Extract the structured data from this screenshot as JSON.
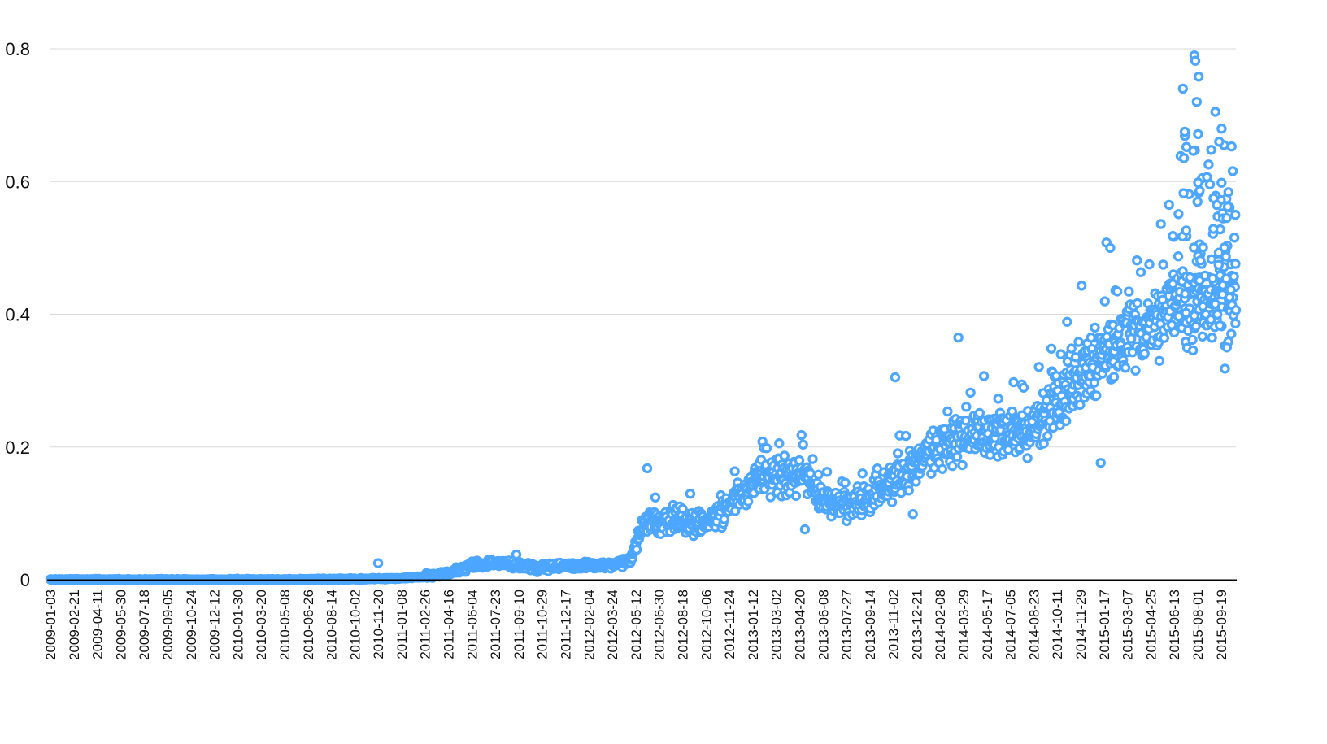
{
  "chart_data": {
    "type": "scatter",
    "title": "",
    "xlabel": "",
    "ylabel": "",
    "ylim": [
      0,
      0.8
    ],
    "yticks": [
      "0",
      "0.2",
      "0.4",
      "0.6",
      "0.8"
    ],
    "grid": "horizontal",
    "legend": "none",
    "marker_color": "#4da6ff",
    "x_tick_labels": [
      "2009-01-03",
      "2009-02-21",
      "2009-04-11",
      "2009-05-30",
      "2009-07-18",
      "2009-09-05",
      "2009-10-24",
      "2009-12-12",
      "2010-01-30",
      "2010-03-20",
      "2010-05-08",
      "2010-06-26",
      "2010-08-14",
      "2010-10-02",
      "2010-11-20",
      "2011-01-08",
      "2011-02-26",
      "2011-04-16",
      "2011-06-04",
      "2011-07-23",
      "2011-09-10",
      "2011-10-29",
      "2011-12-17",
      "2012-02-04",
      "2012-03-24",
      "2012-05-12",
      "2012-06-30",
      "2012-08-18",
      "2012-10-06",
      "2012-11-24",
      "2013-01-12",
      "2013-03-02",
      "2013-04-20",
      "2013-06-08",
      "2013-07-27",
      "2013-09-14",
      "2013-11-02",
      "2013-12-21",
      "2014-02-08",
      "2014-03-29",
      "2014-05-17",
      "2014-07-05",
      "2014-08-23",
      "2014-10-11",
      "2014-11-29",
      "2015-01-17",
      "2015-03-07",
      "2015-04-25",
      "2015-06-13",
      "2015-08-01",
      "2015-09-19"
    ],
    "x_end": "2015-10-20",
    "trend": [
      [
        "2009-01-03",
        0.0
      ],
      [
        "2010-04-01",
        0.0
      ],
      [
        "2010-10-02",
        0.001
      ],
      [
        "2011-01-08",
        0.002
      ],
      [
        "2011-02-26",
        0.005
      ],
      [
        "2011-04-16",
        0.01
      ],
      [
        "2011-06-04",
        0.022
      ],
      [
        "2011-07-23",
        0.025
      ],
      [
        "2011-09-10",
        0.022
      ],
      [
        "2011-10-29",
        0.018
      ],
      [
        "2011-12-17",
        0.02
      ],
      [
        "2012-02-04",
        0.022
      ],
      [
        "2012-03-24",
        0.022
      ],
      [
        "2012-05-01",
        0.03
      ],
      [
        "2012-06-01",
        0.09
      ],
      [
        "2012-06-30",
        0.085
      ],
      [
        "2012-08-18",
        0.09
      ],
      [
        "2012-10-06",
        0.085
      ],
      [
        "2012-11-24",
        0.11
      ],
      [
        "2013-01-12",
        0.145
      ],
      [
        "2013-03-02",
        0.155
      ],
      [
        "2013-04-20",
        0.165
      ],
      [
        "2013-06-08",
        0.125
      ],
      [
        "2013-07-27",
        0.11
      ],
      [
        "2013-09-14",
        0.12
      ],
      [
        "2013-11-02",
        0.15
      ],
      [
        "2013-12-21",
        0.17
      ],
      [
        "2014-02-08",
        0.2
      ],
      [
        "2014-03-29",
        0.215
      ],
      [
        "2014-05-17",
        0.225
      ],
      [
        "2014-07-05",
        0.225
      ],
      [
        "2014-08-23",
        0.23
      ],
      [
        "2014-10-11",
        0.27
      ],
      [
        "2014-11-29",
        0.31
      ],
      [
        "2015-01-17",
        0.34
      ],
      [
        "2015-03-07",
        0.37
      ],
      [
        "2015-04-25",
        0.37
      ],
      [
        "2015-06-13",
        0.42
      ],
      [
        "2015-08-01",
        0.43
      ],
      [
        "2015-09-19",
        0.44
      ],
      [
        "2015-10-20",
        0.43
      ]
    ],
    "notable_points": [
      [
        "2010-11-20",
        0.025
      ],
      [
        "2011-09-05",
        0.038
      ],
      [
        "2012-06-05",
        0.168
      ],
      [
        "2013-04-24",
        0.218
      ],
      [
        "2013-11-06",
        0.305
      ],
      [
        "2014-03-18",
        0.365
      ],
      [
        "2014-12-01",
        0.443
      ],
      [
        "2015-01-22",
        0.508
      ],
      [
        "2015-01-30",
        0.5
      ],
      [
        "2015-06-10",
        0.518
      ],
      [
        "2015-07-01",
        0.74
      ],
      [
        "2015-07-25",
        0.79
      ],
      [
        "2015-07-27",
        0.782
      ],
      [
        "2015-08-03",
        0.758
      ],
      [
        "2015-07-30",
        0.72
      ],
      [
        "2015-07-05",
        0.675
      ],
      [
        "2015-09-07",
        0.705
      ],
      [
        "2015-09-25",
        0.655
      ],
      [
        "2015-09-15",
        0.66
      ],
      [
        "2015-09-03",
        0.575
      ],
      [
        "2015-10-01",
        0.35
      ],
      [
        "2015-09-27",
        0.318
      ],
      [
        "2015-01-10",
        0.176
      ],
      [
        "2013-12-13",
        0.099
      ],
      [
        "2013-05-01",
        0.076
      ]
    ],
    "approx_point_count": 2480
  }
}
